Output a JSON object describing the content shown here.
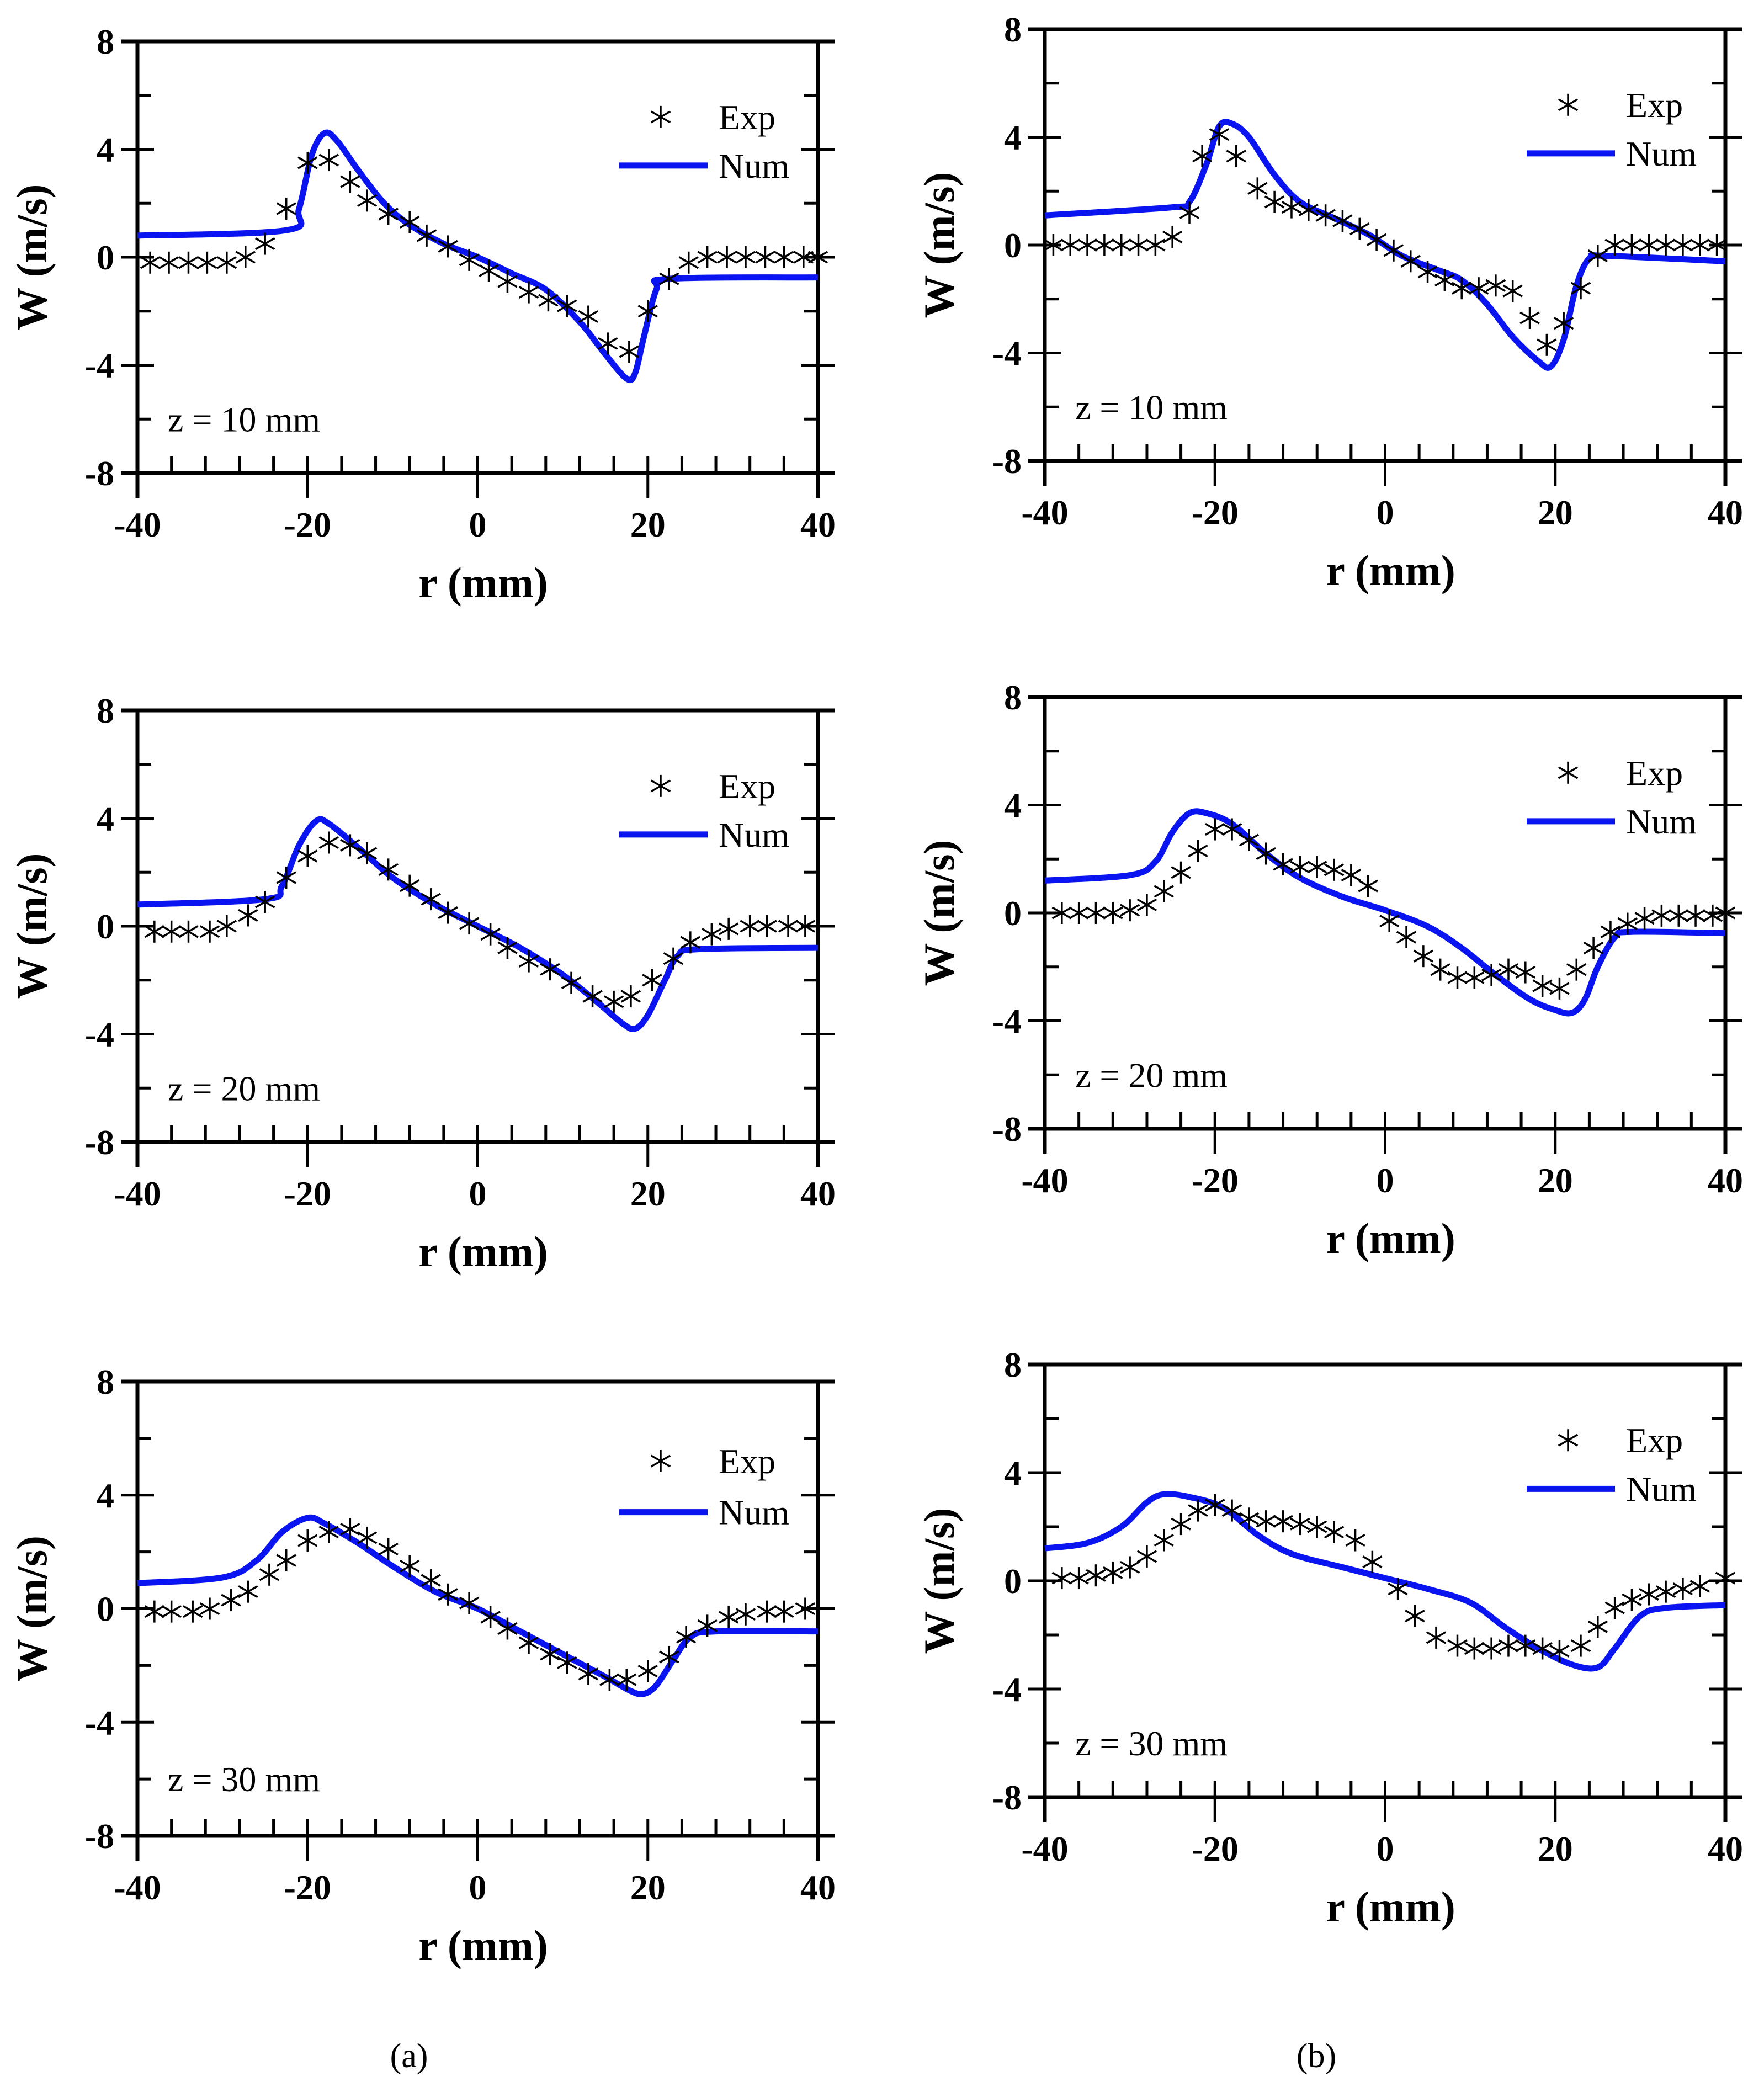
{
  "colors": {
    "num": "#0a14f0",
    "exp": "#000000",
    "axis": "#000000"
  },
  "captions": [
    "(a)",
    "(b)"
  ],
  "chart_data": [
    {
      "type": "line",
      "panel": "a",
      "annotation": "z = 10 mm",
      "xlabel": "r (mm)",
      "ylabel": "W (m/s)",
      "xlim": [
        -40,
        40
      ],
      "ylim": [
        -8,
        8
      ],
      "xticks": [
        "-40",
        "-20",
        "0",
        "20",
        "40"
      ],
      "yticks": [
        "-8",
        "-4",
        "0",
        "4",
        "8"
      ],
      "legend": [
        "Exp",
        "Num"
      ],
      "legend_position": "top-right",
      "series": [
        {
          "name": "Exp",
          "style": "asterisk",
          "x": [
            -38.5,
            -36.3,
            -34,
            -31.8,
            -29.5,
            -27.3,
            -25,
            -22.5,
            -20,
            -17.5,
            -15,
            -13,
            -10.5,
            -8,
            -6,
            -3.5,
            -1,
            1.3,
            3.5,
            6,
            8.3,
            10.5,
            13,
            15.3,
            17.8,
            20,
            22.5,
            24.8,
            27,
            29.3,
            31.5,
            33.8,
            36,
            38.3,
            40
          ],
          "y": [
            -0.2,
            -0.2,
            -0.2,
            -0.2,
            -0.2,
            0,
            0.5,
            1.8,
            3.5,
            3.6,
            2.8,
            2.1,
            1.6,
            1.3,
            0.8,
            0.4,
            -0.1,
            -0.5,
            -0.9,
            -1.3,
            -1.6,
            -1.8,
            -2.2,
            -3.2,
            -3.5,
            -2.0,
            -0.8,
            -0.2,
            0,
            0,
            0,
            0,
            0,
            0,
            0
          ]
        },
        {
          "name": "Num",
          "style": "line",
          "x": [
            -40,
            -22.5,
            -21,
            -19.5,
            -18,
            -16.5,
            -14,
            -11,
            -8,
            -4,
            0,
            4,
            8,
            12,
            15,
            17.5,
            18.5,
            19.5,
            21,
            22.5,
            40
          ],
          "y": [
            0.8,
            1.0,
            1.8,
            3.8,
            4.6,
            4.3,
            3.2,
            2.0,
            1.2,
            0.5,
            0,
            -0.6,
            -1.2,
            -2.4,
            -3.6,
            -4.5,
            -4.3,
            -3.0,
            -1.2,
            -0.8,
            -0.75
          ]
        }
      ]
    },
    {
      "type": "line",
      "panel": "b",
      "annotation": "z = 10 mm",
      "xlabel": "r (mm)",
      "ylabel": "W (m/s)",
      "xlim": [
        -40,
        40
      ],
      "ylim": [
        -8,
        8
      ],
      "xticks": [
        "-40",
        "-20",
        "0",
        "20",
        "40"
      ],
      "yticks": [
        "-8",
        "-4",
        "0",
        "4",
        "8"
      ],
      "legend": [
        "Exp",
        "Num"
      ],
      "legend_position": "top-right",
      "series": [
        {
          "name": "Exp",
          "style": "asterisk",
          "x": [
            -39,
            -37,
            -35,
            -33,
            -31,
            -29,
            -27,
            -25,
            -23,
            -21.5,
            -19.5,
            -17.5,
            -15,
            -13,
            -11,
            -9,
            -7,
            -5,
            -3,
            -1,
            1,
            3,
            5,
            7,
            9,
            11,
            13,
            15,
            17,
            19,
            21,
            23,
            25,
            27,
            29,
            31,
            33,
            35,
            37,
            39
          ],
          "y": [
            0,
            0,
            0,
            0,
            0,
            0,
            0,
            0.3,
            1.2,
            3.3,
            4.1,
            3.3,
            2.1,
            1.6,
            1.4,
            1.3,
            1.1,
            0.9,
            0.6,
            0.2,
            -0.2,
            -0.6,
            -1.0,
            -1.3,
            -1.6,
            -1.6,
            -1.5,
            -1.7,
            -2.7,
            -3.7,
            -2.9,
            -1.6,
            -0.4,
            0,
            0,
            0,
            0,
            0,
            0,
            0
          ]
        },
        {
          "name": "Num",
          "style": "line",
          "x": [
            -40,
            -25,
            -23,
            -21,
            -19.5,
            -18,
            -16,
            -13,
            -10,
            -6,
            -2,
            2,
            6,
            9,
            12,
            15,
            18,
            19.5,
            21,
            22.5,
            24,
            26,
            40
          ],
          "y": [
            1.1,
            1.4,
            1.6,
            3.0,
            4.4,
            4.5,
            4.0,
            2.6,
            1.6,
            1.0,
            0.4,
            -0.4,
            -0.9,
            -1.3,
            -2.2,
            -3.4,
            -4.3,
            -4.5,
            -3.5,
            -1.5,
            -0.5,
            -0.4,
            -0.6
          ]
        }
      ]
    },
    {
      "type": "line",
      "panel": "a",
      "annotation": "z = 20 mm",
      "xlabel": "r (mm)",
      "ylabel": "W (m/s)",
      "xlim": [
        -40,
        40
      ],
      "ylim": [
        -8,
        8
      ],
      "xticks": [
        "-40",
        "-20",
        "0",
        "20",
        "40"
      ],
      "yticks": [
        "-8",
        "-4",
        "0",
        "4",
        "8"
      ],
      "legend": [
        "Exp",
        "Num"
      ],
      "legend_position": "top-right",
      "series": [
        {
          "name": "Exp",
          "style": "asterisk",
          "x": [
            -38,
            -36,
            -34,
            -31.5,
            -29.5,
            -27,
            -25,
            -22.5,
            -20,
            -17.5,
            -15,
            -13,
            -10.5,
            -8,
            -5.5,
            -3.5,
            -1,
            1.5,
            3.5,
            6,
            8.5,
            11,
            13.5,
            16,
            18,
            20.5,
            23,
            25,
            27.5,
            29.5,
            32,
            34,
            36.5,
            38.5
          ],
          "y": [
            -0.2,
            -0.2,
            -0.2,
            -0.2,
            0,
            0.4,
            0.9,
            1.8,
            2.6,
            3.1,
            3.0,
            2.7,
            2.1,
            1.5,
            1.0,
            0.5,
            0.1,
            -0.3,
            -0.8,
            -1.3,
            -1.6,
            -2.1,
            -2.6,
            -2.8,
            -2.6,
            -2.0,
            -1.2,
            -0.6,
            -0.3,
            -0.1,
            0,
            0,
            0,
            0
          ]
        },
        {
          "name": "Num",
          "style": "line",
          "x": [
            -40,
            -25,
            -23,
            -21,
            -19,
            -17.5,
            -14,
            -10,
            -5,
            0,
            5,
            10,
            14,
            17,
            18.5,
            20,
            22,
            23.5,
            26,
            40
          ],
          "y": [
            0.8,
            1.0,
            1.5,
            3.0,
            3.9,
            3.8,
            2.9,
            1.8,
            0.8,
            0,
            -0.8,
            -1.8,
            -2.8,
            -3.6,
            -3.8,
            -3.3,
            -2.0,
            -1.1,
            -0.85,
            -0.8
          ]
        }
      ]
    },
    {
      "type": "line",
      "panel": "b",
      "annotation": "z = 20 mm",
      "xlabel": "r (mm)",
      "ylabel": "W (m/s)",
      "xlim": [
        -40,
        40
      ],
      "ylim": [
        -8,
        8
      ],
      "xticks": [
        "-40",
        "-20",
        "0",
        "20",
        "40"
      ],
      "yticks": [
        "-8",
        "-4",
        "0",
        "4",
        "8"
      ],
      "legend": [
        "Exp",
        "Num"
      ],
      "legend_position": "top-right",
      "series": [
        {
          "name": "Exp",
          "style": "asterisk",
          "x": [
            -38,
            -36,
            -34,
            -32,
            -30,
            -28,
            -26,
            -24,
            -22,
            -20,
            -18,
            -16,
            -14,
            -12,
            -10,
            -8,
            -6,
            -4,
            -2,
            0.5,
            2.5,
            4.5,
            6.5,
            8.5,
            10.5,
            12.5,
            14.5,
            16.5,
            18.5,
            20.5,
            22.5,
            24.5,
            26.5,
            28.5,
            30.5,
            32.5,
            34.5,
            36.5,
            38.5,
            40
          ],
          "y": [
            0,
            0,
            0,
            0,
            0.1,
            0.3,
            0.8,
            1.5,
            2.3,
            3.1,
            3.1,
            2.7,
            2.2,
            1.8,
            1.7,
            1.7,
            1.6,
            1.4,
            1.0,
            -0.3,
            -0.9,
            -1.6,
            -2.1,
            -2.4,
            -2.4,
            -2.3,
            -2.1,
            -2.2,
            -2.7,
            -2.8,
            -2.1,
            -1.3,
            -0.7,
            -0.4,
            -0.2,
            -0.1,
            -0.1,
            -0.1,
            -0.1,
            0
          ]
        },
        {
          "name": "Num",
          "style": "line",
          "x": [
            -40,
            -30,
            -27,
            -25,
            -23,
            -21,
            -18,
            -14,
            -10,
            -5,
            0,
            5,
            9,
            13,
            17,
            20,
            22,
            23.5,
            25,
            27,
            29,
            40
          ],
          "y": [
            1.2,
            1.4,
            1.9,
            3.0,
            3.7,
            3.7,
            3.3,
            2.2,
            1.3,
            0.6,
            0.1,
            -0.5,
            -1.3,
            -2.3,
            -3.2,
            -3.6,
            -3.7,
            -3.2,
            -2.0,
            -0.9,
            -0.7,
            -0.75
          ]
        }
      ]
    },
    {
      "type": "line",
      "panel": "a",
      "annotation": "z = 30 mm",
      "xlabel": "r (mm)",
      "ylabel": "W (m/s)",
      "xlim": [
        -40,
        40
      ],
      "ylim": [
        -8,
        8
      ],
      "xticks": [
        "-40",
        "-20",
        "0",
        "20",
        "40"
      ],
      "yticks": [
        "-8",
        "-4",
        "0",
        "4",
        "8"
      ],
      "legend": [
        "Exp",
        "Num"
      ],
      "legend_position": "top-right",
      "series": [
        {
          "name": "Exp",
          "style": "asterisk",
          "x": [
            -38,
            -36,
            -33.5,
            -31.5,
            -29,
            -27,
            -24.5,
            -22.5,
            -20,
            -17.5,
            -15,
            -13,
            -10.5,
            -8,
            -5.5,
            -3.5,
            -1,
            1.5,
            3.5,
            6,
            8.5,
            10.5,
            13,
            15.5,
            17.5,
            20,
            22.5,
            24.5,
            27,
            29.5,
            31.5,
            34,
            36,
            38.5
          ],
          "y": [
            -0.1,
            -0.1,
            -0.1,
            0,
            0.3,
            0.6,
            1.2,
            1.7,
            2.4,
            2.7,
            2.8,
            2.5,
            2.1,
            1.5,
            1.0,
            0.5,
            0.2,
            -0.3,
            -0.7,
            -1.2,
            -1.6,
            -1.9,
            -2.3,
            -2.5,
            -2.5,
            -2.2,
            -1.7,
            -1.0,
            -0.6,
            -0.3,
            -0.2,
            -0.1,
            -0.1,
            0
          ]
        },
        {
          "name": "Num",
          "style": "line",
          "x": [
            -40,
            -30,
            -26,
            -23,
            -20,
            -18,
            -14,
            -10,
            -5,
            0,
            5,
            10,
            15,
            18,
            19.5,
            21,
            23,
            25,
            28,
            40
          ],
          "y": [
            0.9,
            1.1,
            1.7,
            2.7,
            3.2,
            3.0,
            2.3,
            1.5,
            0.6,
            0,
            -0.8,
            -1.6,
            -2.4,
            -2.9,
            -3.0,
            -2.7,
            -1.8,
            -1.0,
            -0.8,
            -0.8
          ]
        }
      ]
    },
    {
      "type": "line",
      "panel": "b",
      "annotation": "z = 30 mm",
      "xlabel": "r (mm)",
      "ylabel": "W (m/s)",
      "xlim": [
        -40,
        40
      ],
      "ylim": [
        -8,
        8
      ],
      "xticks": [
        "-40",
        "-20",
        "0",
        "20",
        "40"
      ],
      "yticks": [
        "-8",
        "-4",
        "0",
        "4",
        "8"
      ],
      "legend": [
        "Exp",
        "Num"
      ],
      "legend_position": "top-right",
      "series": [
        {
          "name": "Exp",
          "style": "asterisk",
          "x": [
            -38,
            -36,
            -34,
            -32,
            -30,
            -28,
            -26,
            -24,
            -22,
            -20,
            -18,
            -16,
            -14,
            -12,
            -10,
            -8,
            -6,
            -3.5,
            -1.5,
            1.5,
            3.5,
            6,
            8.5,
            10.5,
            12.5,
            14.5,
            16.5,
            18.5,
            20.5,
            23,
            25,
            27,
            29,
            31,
            33,
            35,
            37,
            40
          ],
          "y": [
            0.1,
            0.1,
            0.2,
            0.3,
            0.5,
            0.9,
            1.5,
            2.1,
            2.6,
            2.8,
            2.6,
            2.3,
            2.2,
            2.2,
            2.1,
            2.0,
            1.8,
            1.5,
            0.7,
            -0.3,
            -1.3,
            -2.1,
            -2.4,
            -2.5,
            -2.5,
            -2.4,
            -2.4,
            -2.5,
            -2.6,
            -2.4,
            -1.7,
            -1.0,
            -0.7,
            -0.5,
            -0.4,
            -0.3,
            -0.2,
            0.1
          ]
        },
        {
          "name": "Num",
          "style": "line",
          "x": [
            -40,
            -35,
            -31,
            -28,
            -26,
            -23,
            -19,
            -15,
            -11,
            -5,
            0,
            5,
            10,
            14,
            18,
            22,
            25,
            27,
            30,
            33,
            40
          ],
          "y": [
            1.2,
            1.4,
            2.0,
            2.9,
            3.2,
            3.1,
            2.7,
            1.7,
            1.0,
            0.5,
            0.1,
            -0.3,
            -0.8,
            -1.7,
            -2.5,
            -3.1,
            -3.2,
            -2.5,
            -1.3,
            -1.0,
            -0.9
          ]
        }
      ]
    }
  ]
}
